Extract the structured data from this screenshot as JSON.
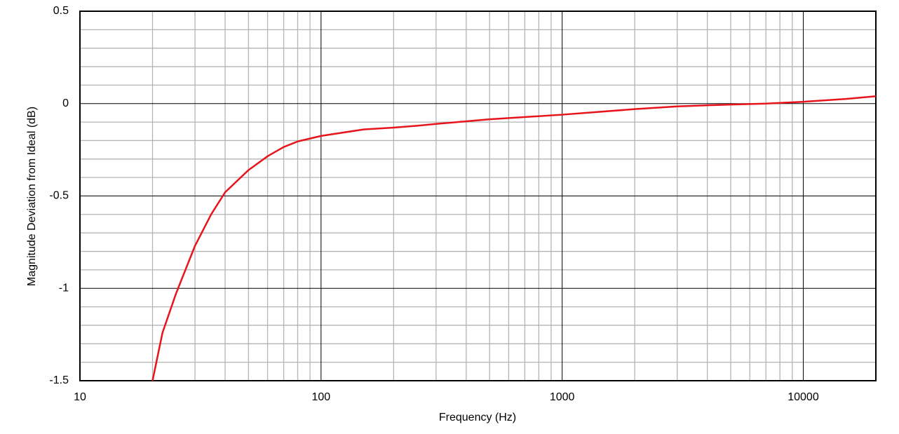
{
  "chart_data": {
    "type": "line",
    "x_label": "Frequency (Hz)",
    "y_label": "Magnitude Deviation from Ideal (dB)",
    "xscale": "log",
    "xlim": [
      10,
      20000
    ],
    "ylim": [
      -1.5,
      0.5
    ],
    "xticks": [
      10,
      100,
      1000,
      10000
    ],
    "minor_xticks": [
      20,
      30,
      40,
      50,
      60,
      70,
      80,
      90,
      200,
      300,
      400,
      500,
      600,
      700,
      800,
      900,
      2000,
      3000,
      4000,
      5000,
      6000,
      7000,
      8000,
      9000
    ],
    "yticks": [
      -1.5,
      -1,
      -0.5,
      0,
      0.5
    ],
    "minor_yticks": [
      -1.4,
      -1.3,
      -1.2,
      -1.1,
      -0.9,
      -0.8,
      -0.7,
      -0.6,
      -0.4,
      -0.3,
      -0.2,
      -0.1,
      0.1,
      0.2,
      0.3,
      0.4
    ],
    "grid": true,
    "x": [
      20,
      22,
      25,
      30,
      35,
      40,
      50,
      60,
      70,
      80,
      100,
      150,
      200,
      250,
      300,
      500,
      1000,
      2000,
      3000,
      5000,
      7000,
      10000,
      15000,
      20000
    ],
    "series": [
      {
        "color": "#e8141b",
        "values": [
          -1.5,
          -1.24,
          -1.03,
          -0.77,
          -0.6,
          -0.48,
          -0.36,
          -0.285,
          -0.235,
          -0.205,
          -0.175,
          -0.14,
          -0.13,
          -0.12,
          -0.11,
          -0.085,
          -0.06,
          -0.03,
          -0.015,
          -0.005,
          0,
          0.01,
          0.025,
          0.04
        ]
      }
    ]
  }
}
